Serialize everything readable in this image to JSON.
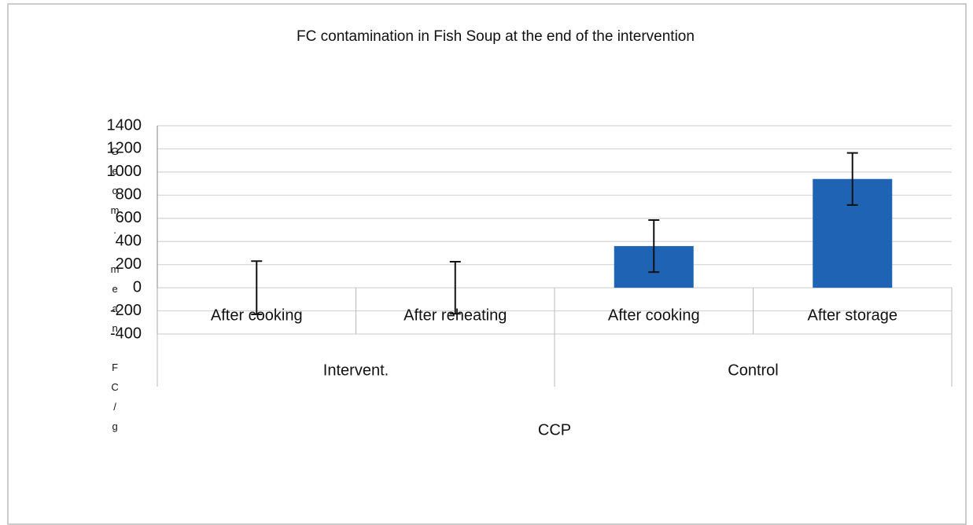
{
  "chart_data": {
    "type": "bar",
    "title": "FC contamination in Fish Soup  at the end of the  intervention",
    "y_label": "Geom. mean FC/g",
    "x_label": "CCP",
    "color": "#1f63b5",
    "groups": [
      {
        "name": "Intervent.",
        "categories": [
          "After cooking",
          "After reheating"
        ],
        "values": [
          0,
          0
        ],
        "errors": [
          230,
          225
        ]
      },
      {
        "name": "Control",
        "categories": [
          "After cooking",
          "After storage"
        ],
        "values": [
          360,
          940
        ],
        "errors": [
          225,
          225
        ]
      }
    ],
    "ylim": [
      -400,
      1400
    ],
    "yticks": [
      -400,
      -200,
      0,
      200,
      400,
      600,
      800,
      1000,
      1200,
      1400
    ],
    "grid": true
  }
}
